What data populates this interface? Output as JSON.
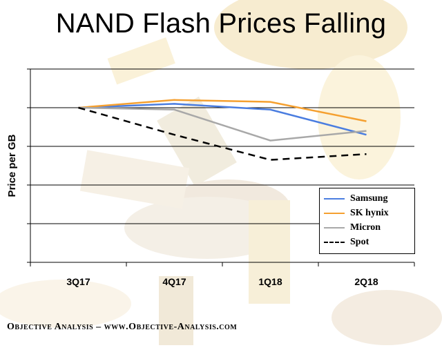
{
  "chart_data": {
    "type": "line",
    "title": "NAND Flash Prices Falling",
    "xlabel": "",
    "ylabel": "Price per GB",
    "categories": [
      "3Q17",
      "4Q17",
      "1Q18",
      "2Q18"
    ],
    "ylim": [
      0,
      5
    ],
    "grid": true,
    "legend": "bottom-right",
    "series": [
      {
        "name": "Samsung",
        "values": [
          4.0,
          4.1,
          3.95,
          3.3
        ],
        "color": "#4a7de0",
        "style": "solid"
      },
      {
        "name": "SK hynix",
        "values": [
          4.0,
          4.2,
          4.15,
          3.65
        ],
        "color": "#f5a030",
        "style": "solid"
      },
      {
        "name": "Micron",
        "values": [
          4.0,
          3.95,
          3.15,
          3.4
        ],
        "color": "#a8a8a8",
        "style": "solid"
      },
      {
        "name": "Spot",
        "values": [
          4.0,
          3.3,
          2.65,
          2.8
        ],
        "color": "#000000",
        "style": "dashed"
      }
    ]
  },
  "footer": {
    "text": "Objective Analysis – www.Objective-Analysis.com"
  }
}
